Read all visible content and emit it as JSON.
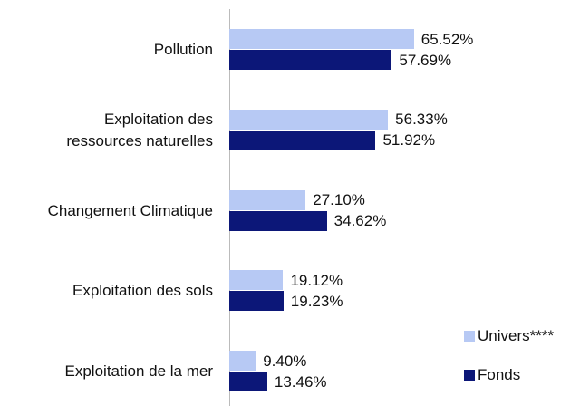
{
  "chart_data": {
    "type": "bar",
    "orientation": "horizontal",
    "categories": [
      "Pollution",
      "Exploitation des\nressources naturelles",
      "Changement Climatique",
      "Exploitation des sols",
      "Exploitation de la mer"
    ],
    "series": [
      {
        "name": "Univers****",
        "color": "#b7c9f4",
        "values": [
          65.52,
          56.33,
          27.1,
          19.12,
          9.4
        ],
        "value_labels": [
          "65.52%",
          "56.33%",
          "27.10%",
          "19.12%",
          "9.40%"
        ]
      },
      {
        "name": "Fonds",
        "color": "#0c1778",
        "values": [
          57.69,
          51.92,
          34.62,
          19.23,
          13.46
        ],
        "value_labels": [
          "57.69%",
          "51.92%",
          "34.62%",
          "19.23%",
          "13.46%"
        ]
      }
    ],
    "xlim": [
      0,
      100
    ],
    "legend": "bottom-right"
  }
}
